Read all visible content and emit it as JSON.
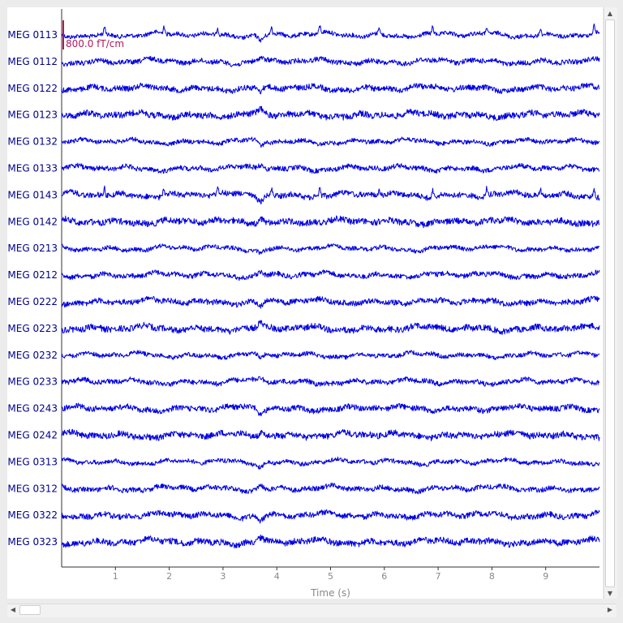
{
  "chart_data": {
    "type": "line",
    "title": "",
    "xlabel": "Time (s)",
    "ylabel": "",
    "xlim": [
      0,
      10
    ],
    "xticks": [
      "1",
      "2",
      "3",
      "4",
      "5",
      "6",
      "7",
      "8",
      "9"
    ],
    "trace_color": "#0000e0",
    "label_color": "#00008b",
    "scalebar": {
      "label": "800.0 fT/cm",
      "color": "#b2185a"
    },
    "channels": [
      "MEG 0113",
      "MEG 0112",
      "MEG 0122",
      "MEG 0123",
      "MEG 0132",
      "MEG 0133",
      "MEG 0143",
      "MEG 0142",
      "MEG 0213",
      "MEG 0212",
      "MEG 0222",
      "MEG 0223",
      "MEG 0232",
      "MEG 0233",
      "MEG 0243",
      "MEG 0242",
      "MEG 0313",
      "MEG 0312",
      "MEG 0322",
      "MEG 0323"
    ],
    "spike_times_s": [
      0.8,
      1.9,
      2.9,
      3.9,
      4.8,
      5.9,
      6.9,
      7.9,
      8.9,
      9.9
    ],
    "event_time_s": 3.7
  },
  "scrollbars": {
    "up_arrow": "▲",
    "down_arrow": "▼",
    "left_arrow": "◀",
    "right_arrow": "▶"
  }
}
